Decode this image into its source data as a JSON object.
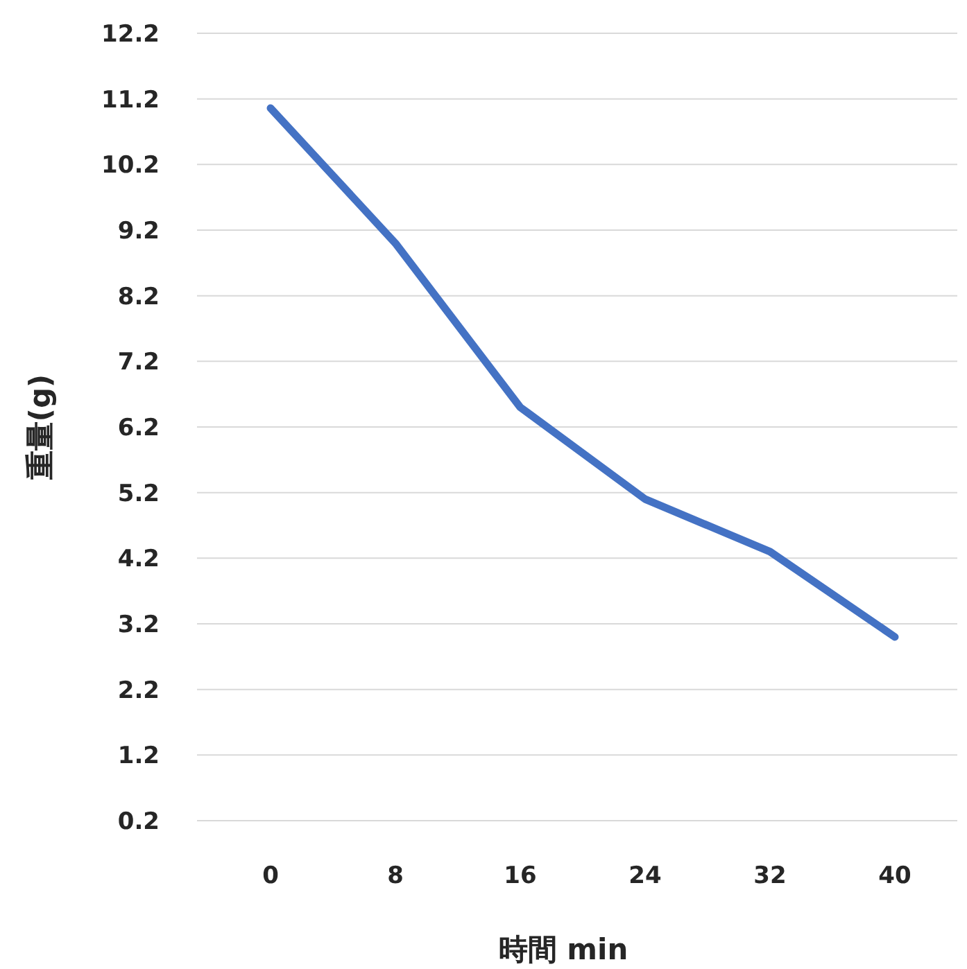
{
  "chart_data": {
    "type": "line",
    "xlabel": "時間 min",
    "ylabel": "重量(g)",
    "categories": [
      "0",
      "8",
      "16",
      "24",
      "32",
      "40"
    ],
    "series": [
      {
        "color": "#4472c4",
        "values": [
          11.06,
          9.0,
          6.5,
          5.1,
          4.3,
          3.0
        ]
      }
    ],
    "ylim": [
      0.2,
      12.2
    ],
    "yticks": [
      0.2,
      1.2,
      2.2,
      3.2,
      4.2,
      5.2,
      6.2,
      7.2,
      8.2,
      9.2,
      10.2,
      11.2,
      12.2
    ],
    "grid": "y",
    "marker": "none",
    "line_style": "solid"
  }
}
